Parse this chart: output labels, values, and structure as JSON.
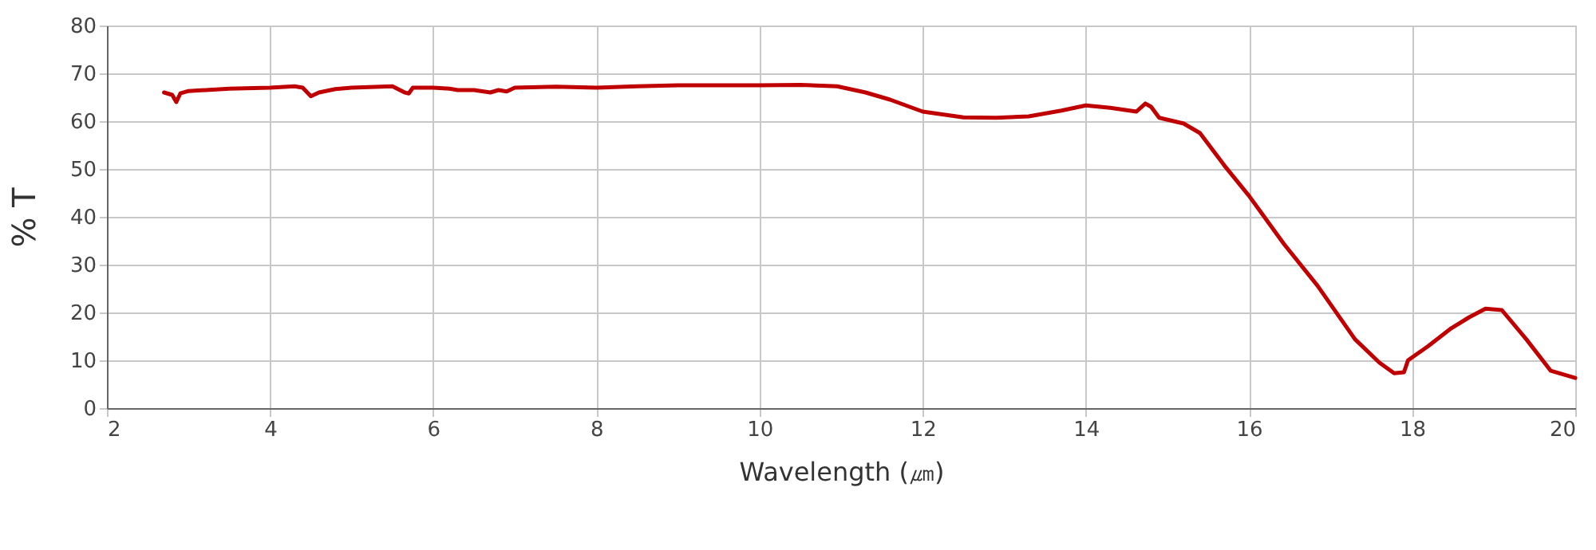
{
  "chart_data": {
    "type": "line",
    "xlabel": "Wavelength (㎛)",
    "ylabel": "% T",
    "xlim": [
      2,
      20
    ],
    "ylim": [
      0,
      80
    ],
    "xticks": [
      2,
      4,
      6,
      8,
      10,
      12,
      14,
      16,
      18,
      20
    ],
    "yticks": [
      0,
      10,
      20,
      30,
      40,
      50,
      60,
      70,
      80
    ],
    "grid": true,
    "marker": "none",
    "line_style": "solid",
    "series": [
      {
        "color": "#c00000",
        "x": [
          2.7,
          2.8,
          2.85,
          2.9,
          3.0,
          3.5,
          4.0,
          4.3,
          4.4,
          4.5,
          4.6,
          4.8,
          5.0,
          5.5,
          5.65,
          5.7,
          5.75,
          6.0,
          6.2,
          6.3,
          6.5,
          6.7,
          6.8,
          6.9,
          7.0,
          7.5,
          8.0,
          8.5,
          9.0,
          9.5,
          10.0,
          10.5,
          10.95,
          11.3,
          11.6,
          12.0,
          12.5,
          12.9,
          13.3,
          13.7,
          14.0,
          14.3,
          14.62,
          14.73,
          14.8,
          14.9,
          15.2,
          15.4,
          15.7,
          16.0,
          16.43,
          16.84,
          17.3,
          17.6,
          17.78,
          17.9,
          17.95,
          18.2,
          18.48,
          18.7,
          18.9,
          19.1,
          19.4,
          19.7,
          20.0
        ],
        "values": [
          66,
          65.5,
          64,
          65.8,
          66.3,
          66.8,
          67,
          67.3,
          67,
          65.2,
          66,
          66.7,
          67,
          67.3,
          66,
          65.8,
          67,
          67,
          66.8,
          66.5,
          66.5,
          66,
          66.5,
          66.2,
          67,
          67.2,
          67,
          67.3,
          67.5,
          67.5,
          67.5,
          67.6,
          67.3,
          66,
          64.5,
          62,
          60.8,
          60.7,
          61,
          62.2,
          63.3,
          62.8,
          62,
          63.7,
          63,
          60.7,
          59.5,
          57.5,
          50.7,
          44.4,
          34.3,
          25.6,
          14.4,
          9.5,
          7.3,
          7.5,
          10,
          13,
          16.7,
          19,
          20.8,
          20.5,
          14.4,
          7.8,
          6.3
        ]
      }
    ]
  }
}
